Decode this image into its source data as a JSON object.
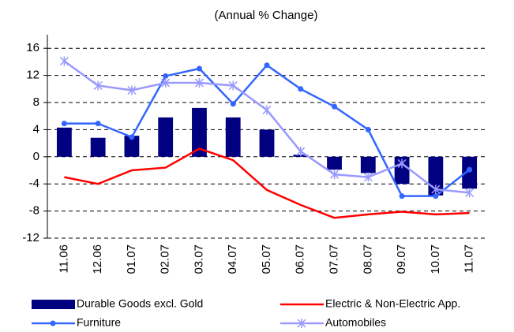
{
  "chart_data": {
    "type": "bar-line",
    "title": "(Annual % Change)",
    "categories": [
      "11.06",
      "12.06",
      "01.07",
      "02.07",
      "03.07",
      "04.07",
      "05.07",
      "06.07",
      "07.07",
      "08.07",
      "09.07",
      "10.07",
      "11.07"
    ],
    "ylim": [
      -12,
      18
    ],
    "yticks": [
      -12,
      -8,
      -4,
      0,
      4,
      8,
      12,
      16
    ],
    "grid": true,
    "series": [
      {
        "name": "Durable Goods excl. Gold",
        "type": "bar",
        "color": "#000080",
        "values": [
          4.3,
          2.8,
          3.1,
          5.8,
          7.2,
          5.8,
          4.0,
          0.3,
          -1.9,
          -2.4,
          -4.0,
          -5.7,
          -4.7
        ]
      },
      {
        "name": "Electric & Non-Electric App.",
        "type": "line",
        "color": "#ff0000",
        "values": [
          -3.0,
          -4.0,
          -2.0,
          -1.6,
          1.2,
          -0.5,
          -4.9,
          -7.1,
          -9.0,
          -8.5,
          -8.1,
          -8.5,
          -8.3
        ]
      },
      {
        "name": "Furniture",
        "type": "line",
        "marker": "circle",
        "color": "#3366ff",
        "values": [
          4.9,
          4.9,
          2.9,
          11.9,
          13.0,
          7.8,
          13.5,
          10.0,
          7.4,
          4.0,
          -5.8,
          -5.8,
          -1.9
        ]
      },
      {
        "name": "Automobiles",
        "type": "line",
        "marker": "star",
        "color": "#9999ff",
        "values": [
          14.1,
          10.5,
          9.8,
          10.9,
          10.9,
          10.5,
          6.9,
          0.8,
          -2.6,
          -3.0,
          -1.0,
          -4.8,
          -5.3
        ]
      }
    ]
  }
}
